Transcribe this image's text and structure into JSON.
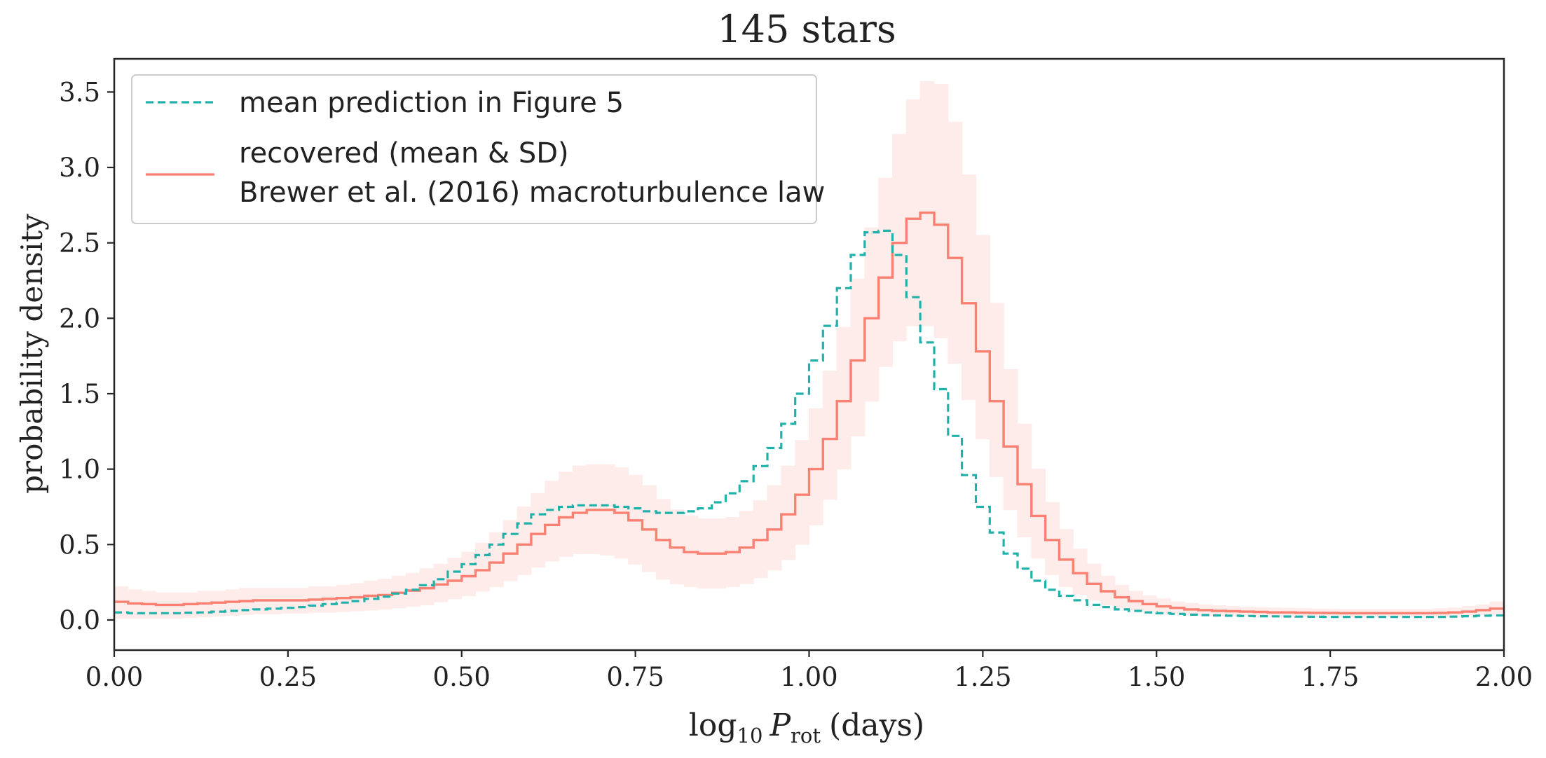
{
  "chart_data": {
    "type": "line",
    "title": "145 stars",
    "xlabel": {
      "prefix": "log",
      "sub1": "10",
      "var": "P",
      "sub2": "rot",
      "suffix": "(days)"
    },
    "ylabel": "probability density",
    "xlim": [
      0,
      2
    ],
    "ylim": [
      -0.2,
      3.72
    ],
    "xticks": [
      0,
      0.25,
      0.5,
      0.75,
      1.0,
      1.25,
      1.5,
      1.75,
      2.0
    ],
    "xtick_labels": [
      "0.00",
      "0.25",
      "0.50",
      "0.75",
      "1.00",
      "1.25",
      "1.50",
      "1.75",
      "2.00"
    ],
    "yticks": [
      0,
      0.5,
      1.0,
      1.5,
      2.0,
      2.5,
      3.0,
      3.5
    ],
    "ytick_labels": [
      "0.0",
      "0.5",
      "1.0",
      "1.5",
      "2.0",
      "2.5",
      "3.0",
      "3.5"
    ],
    "grid": false,
    "legend_position": "top-left",
    "legend": [
      "mean prediction in Figure 5",
      "recovered (mean & SD)",
      "Brewer et al. (2016) macroturbulence law"
    ],
    "colors": {
      "prediction": "#20b2aa",
      "recovered": "#fa8072",
      "band": "#fdecea"
    },
    "x": [
      0.0,
      0.02,
      0.04,
      0.06,
      0.08,
      0.1,
      0.12,
      0.14,
      0.16,
      0.18,
      0.2,
      0.22,
      0.24,
      0.26,
      0.28,
      0.3,
      0.32,
      0.34,
      0.36,
      0.38,
      0.4,
      0.42,
      0.44,
      0.46,
      0.48,
      0.5,
      0.52,
      0.54,
      0.56,
      0.58,
      0.6,
      0.62,
      0.64,
      0.66,
      0.68,
      0.7,
      0.72,
      0.74,
      0.76,
      0.78,
      0.8,
      0.82,
      0.84,
      0.86,
      0.88,
      0.9,
      0.92,
      0.94,
      0.96,
      0.98,
      1.0,
      1.02,
      1.04,
      1.06,
      1.08,
      1.1,
      1.12,
      1.14,
      1.16,
      1.18,
      1.2,
      1.22,
      1.24,
      1.26,
      1.28,
      1.3,
      1.32,
      1.34,
      1.36,
      1.38,
      1.4,
      1.42,
      1.44,
      1.46,
      1.48,
      1.5,
      1.52,
      1.54,
      1.56,
      1.58,
      1.6,
      1.62,
      1.64,
      1.66,
      1.68,
      1.7,
      1.72,
      1.74,
      1.76,
      1.78,
      1.8,
      1.82,
      1.84,
      1.86,
      1.88,
      1.9,
      1.92,
      1.94,
      1.96,
      1.98
    ],
    "series": [
      {
        "name": "mean prediction in Figure 5",
        "style": "dashed",
        "values": [
          0.05,
          0.045,
          0.045,
          0.045,
          0.045,
          0.048,
          0.05,
          0.055,
          0.06,
          0.065,
          0.07,
          0.075,
          0.08,
          0.085,
          0.095,
          0.105,
          0.115,
          0.125,
          0.14,
          0.155,
          0.175,
          0.2,
          0.23,
          0.27,
          0.32,
          0.37,
          0.43,
          0.5,
          0.57,
          0.64,
          0.7,
          0.73,
          0.75,
          0.76,
          0.76,
          0.76,
          0.75,
          0.74,
          0.72,
          0.71,
          0.71,
          0.72,
          0.74,
          0.78,
          0.84,
          0.92,
          1.02,
          1.14,
          1.3,
          1.5,
          1.72,
          1.95,
          2.2,
          2.42,
          2.57,
          2.58,
          2.42,
          2.14,
          1.84,
          1.53,
          1.22,
          0.96,
          0.75,
          0.58,
          0.44,
          0.34,
          0.26,
          0.2,
          0.16,
          0.13,
          0.1,
          0.085,
          0.07,
          0.06,
          0.05,
          0.045,
          0.04,
          0.035,
          0.032,
          0.03,
          0.028,
          0.026,
          0.025,
          0.024,
          0.023,
          0.022,
          0.021,
          0.02,
          0.02,
          0.02,
          0.02,
          0.02,
          0.02,
          0.02,
          0.02,
          0.02,
          0.022,
          0.025,
          0.028,
          0.03
        ]
      },
      {
        "name": "recovered (mean & SD)",
        "style": "solid",
        "values": [
          0.12,
          0.11,
          0.105,
          0.1,
          0.1,
          0.105,
          0.11,
          0.115,
          0.12,
          0.125,
          0.13,
          0.13,
          0.13,
          0.13,
          0.135,
          0.14,
          0.145,
          0.15,
          0.16,
          0.165,
          0.18,
          0.195,
          0.21,
          0.235,
          0.26,
          0.29,
          0.33,
          0.38,
          0.44,
          0.5,
          0.57,
          0.63,
          0.68,
          0.71,
          0.73,
          0.73,
          0.71,
          0.66,
          0.6,
          0.53,
          0.48,
          0.45,
          0.44,
          0.44,
          0.45,
          0.48,
          0.53,
          0.6,
          0.7,
          0.83,
          1.0,
          1.2,
          1.45,
          1.72,
          2.0,
          2.27,
          2.5,
          2.66,
          2.7,
          2.62,
          2.4,
          2.1,
          1.78,
          1.45,
          1.15,
          0.9,
          0.69,
          0.53,
          0.4,
          0.31,
          0.24,
          0.19,
          0.15,
          0.125,
          0.105,
          0.09,
          0.08,
          0.07,
          0.065,
          0.06,
          0.058,
          0.055,
          0.053,
          0.05,
          0.05,
          0.048,
          0.047,
          0.046,
          0.045,
          0.045,
          0.045,
          0.045,
          0.045,
          0.045,
          0.045,
          0.046,
          0.05,
          0.055,
          0.065,
          0.075
        ]
      },
      {
        "name": "",
        "style": "band-lower",
        "values": [
          0.01,
          0.01,
          0.01,
          0.01,
          0.01,
          0.015,
          0.02,
          0.025,
          0.03,
          0.035,
          0.04,
          0.04,
          0.045,
          0.045,
          0.05,
          0.05,
          0.055,
          0.06,
          0.065,
          0.07,
          0.08,
          0.09,
          0.1,
          0.12,
          0.14,
          0.16,
          0.19,
          0.22,
          0.26,
          0.3,
          0.35,
          0.39,
          0.42,
          0.44,
          0.44,
          0.43,
          0.41,
          0.37,
          0.32,
          0.27,
          0.24,
          0.22,
          0.21,
          0.21,
          0.22,
          0.24,
          0.28,
          0.33,
          0.4,
          0.5,
          0.63,
          0.8,
          1.0,
          1.22,
          1.45,
          1.68,
          1.85,
          1.95,
          1.95,
          1.87,
          1.7,
          1.46,
          1.2,
          0.95,
          0.73,
          0.55,
          0.41,
          0.3,
          0.22,
          0.17,
          0.13,
          0.1,
          0.08,
          0.065,
          0.055,
          0.045,
          0.04,
          0.035,
          0.032,
          0.03,
          0.028,
          0.026,
          0.024,
          0.022,
          0.02,
          0.02,
          0.02,
          0.02,
          0.02,
          0.02,
          0.02,
          0.02,
          0.02,
          0.02,
          0.02,
          0.02,
          0.025,
          0.03,
          0.035,
          0.04
        ]
      },
      {
        "name": "",
        "style": "band-upper",
        "values": [
          0.22,
          0.2,
          0.19,
          0.18,
          0.18,
          0.18,
          0.19,
          0.19,
          0.2,
          0.21,
          0.21,
          0.21,
          0.21,
          0.21,
          0.22,
          0.22,
          0.23,
          0.24,
          0.26,
          0.27,
          0.29,
          0.31,
          0.34,
          0.37,
          0.41,
          0.45,
          0.51,
          0.58,
          0.66,
          0.75,
          0.84,
          0.92,
          0.98,
          1.02,
          1.03,
          1.03,
          1.01,
          0.96,
          0.89,
          0.8,
          0.73,
          0.69,
          0.67,
          0.67,
          0.68,
          0.72,
          0.79,
          0.89,
          1.02,
          1.19,
          1.4,
          1.65,
          1.94,
          2.26,
          2.6,
          2.93,
          3.22,
          3.45,
          3.57,
          3.55,
          3.3,
          2.95,
          2.55,
          2.1,
          1.66,
          1.3,
          1.0,
          0.78,
          0.6,
          0.47,
          0.37,
          0.29,
          0.23,
          0.19,
          0.16,
          0.14,
          0.12,
          0.11,
          0.1,
          0.095,
          0.09,
          0.085,
          0.082,
          0.08,
          0.078,
          0.076,
          0.074,
          0.072,
          0.07,
          0.07,
          0.07,
          0.07,
          0.07,
          0.07,
          0.07,
          0.075,
          0.08,
          0.09,
          0.1,
          0.12
        ]
      }
    ]
  }
}
